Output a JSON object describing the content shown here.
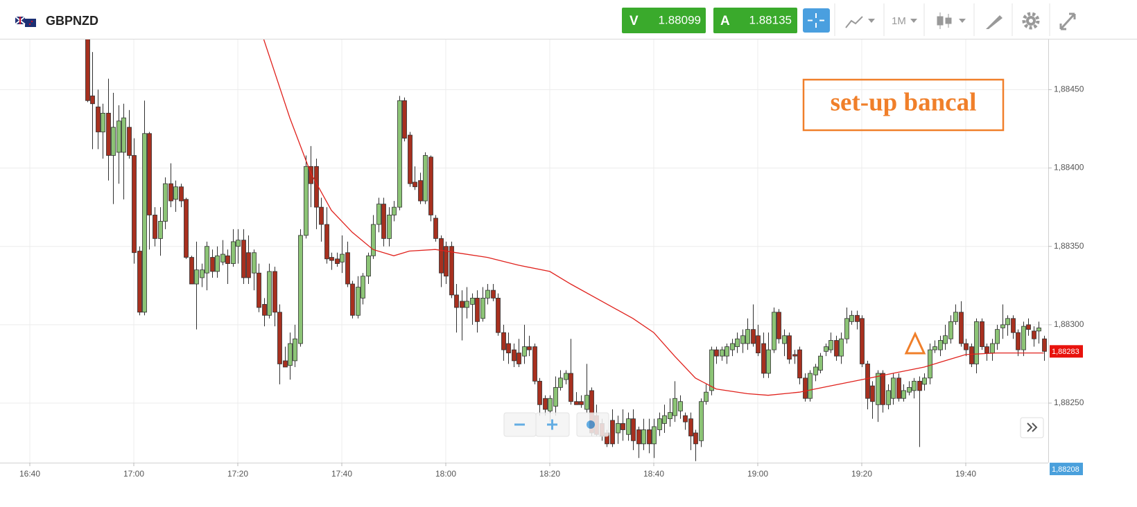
{
  "toolbar": {
    "symbol": "GBPNZD",
    "sell_label": "V",
    "sell_price": 1.88099,
    "buy_label": "A",
    "buy_price": 1.88135,
    "timeframe": "1M"
  },
  "chart_data": {
    "type": "candlestick",
    "annotation": "set-up bancal",
    "up_color": "#8cc476",
    "down_color": "#a7301f",
    "outline_color": "#2f2f2f",
    "x": [
      "16:51",
      "16:52",
      "16:53",
      "16:54",
      "16:55",
      "16:56",
      "16:57",
      "16:58",
      "16:59",
      "17:00",
      "17:01",
      "17:02",
      "17:03",
      "17:04",
      "17:05",
      "17:06",
      "17:07",
      "17:08",
      "17:09",
      "17:10",
      "17:11",
      "17:12",
      "17:13",
      "17:14",
      "17:15",
      "17:16",
      "17:17",
      "17:18",
      "17:19",
      "17:20",
      "17:21",
      "17:22",
      "17:23",
      "17:24",
      "17:25",
      "17:26",
      "17:27",
      "17:28",
      "17:29",
      "17:30",
      "17:31",
      "17:32",
      "17:33",
      "17:34",
      "17:35",
      "17:36",
      "17:37",
      "17:38",
      "17:39",
      "17:40",
      "17:41",
      "17:42",
      "17:43",
      "17:44",
      "17:45",
      "17:46",
      "17:47",
      "17:48",
      "17:49",
      "17:50",
      "17:51",
      "17:52",
      "17:53",
      "17:54",
      "17:55",
      "17:56",
      "17:57",
      "17:58",
      "17:59",
      "18:00",
      "18:01",
      "18:02",
      "18:03",
      "18:04",
      "18:05",
      "18:06",
      "18:07",
      "18:08",
      "18:09",
      "18:10",
      "18:11",
      "18:12",
      "18:13",
      "18:14",
      "18:15",
      "18:16",
      "18:17",
      "18:18",
      "18:19",
      "18:20",
      "18:21",
      "18:22",
      "18:23",
      "18:24",
      "18:25",
      "18:26",
      "18:27",
      "18:28",
      "18:29",
      "18:30",
      "18:31",
      "18:32",
      "18:33",
      "18:34",
      "18:35",
      "18:36",
      "18:37",
      "18:38",
      "18:39",
      "18:40",
      "18:41",
      "18:42",
      "18:43",
      "18:44",
      "18:45",
      "18:46",
      "18:47",
      "18:48",
      "18:49",
      "18:50",
      "18:51",
      "18:52",
      "18:53",
      "18:54",
      "18:55",
      "18:56",
      "18:57",
      "18:58",
      "18:59",
      "19:00",
      "19:01",
      "19:02",
      "19:03",
      "19:04",
      "19:05",
      "19:06",
      "19:07",
      "19:08",
      "19:09",
      "19:10",
      "19:11",
      "19:12",
      "19:13",
      "19:14",
      "19:15",
      "19:16",
      "19:17",
      "19:18",
      "19:19",
      "19:20",
      "19:21",
      "19:22",
      "19:23",
      "19:24",
      "19:25",
      "19:26",
      "19:27",
      "19:28",
      "19:29",
      "19:30",
      "19:31",
      "19:32",
      "19:33",
      "19:34",
      "19:35",
      "19:36",
      "19:37",
      "19:38",
      "19:39",
      "19:40",
      "19:41",
      "19:42",
      "19:43",
      "19:44",
      "19:45",
      "19:46",
      "19:47",
      "19:48",
      "19:49",
      "19:50",
      "19:51",
      "19:52",
      "19:53",
      "19:54",
      "19:55"
    ],
    "open": [
      1.88485,
      1.88446,
      1.88439,
      1.88423,
      1.88435,
      1.88408,
      1.8841,
      1.8841,
      1.88426,
      1.88408,
      1.88347,
      1.88308,
      1.88422,
      1.8837,
      1.88355,
      1.88366,
      1.8839,
      1.8838,
      1.88388,
      1.8838,
      1.88343,
      1.88326,
      1.8833,
      1.88333,
      1.88343,
      1.88334,
      1.8834,
      1.88344,
      1.88339,
      1.8835,
      1.88354,
      1.88346,
      1.88333,
      1.88333,
      1.88313,
      1.88306,
      1.88334,
      1.88308,
      1.88277,
      1.88274,
      1.88277,
      1.88288,
      1.88357,
      1.88401,
      1.88401,
      1.88375,
      1.88364,
      1.88343,
      1.88342,
      1.8834,
      1.88346,
      1.88326,
      1.88306,
      1.88317,
      1.88331,
      1.88344,
      1.88364,
      1.88377,
      1.88355,
      1.8837,
      1.88375,
      1.88443,
      1.88421,
      1.88391,
      1.88392,
      1.88379,
      1.88407,
      1.88368,
      1.88355,
      1.8835,
      1.8835,
      1.88319,
      1.88315,
      1.88311,
      1.88313,
      1.88317,
      1.88304,
      1.88317,
      1.88322,
      1.88317,
      1.88295,
      1.88288,
      1.88284,
      1.88282,
      1.8828,
      1.88286,
      1.88286,
      1.88264,
      1.88253,
      1.88245,
      1.88248,
      1.8826,
      1.88265,
      1.88269,
      1.88251,
      1.88251,
      1.88246,
      1.88258,
      1.88242,
      1.88237,
      1.88231,
      1.88239,
      1.88231,
      1.88237,
      1.8823,
      1.8824,
      1.88233,
      1.88224,
      1.88233,
      1.88224,
      1.88233,
      1.88237,
      1.8824,
      1.88242,
      1.88245,
      1.88242,
      1.8824,
      1.88231,
      1.88226,
      1.88251,
      1.88258,
      1.88284,
      1.8828,
      1.8828,
      1.88284,
      1.88286,
      1.88288,
      1.88288,
      1.88297,
      1.88293,
      1.88288,
      1.88269,
      1.88284,
      1.88308,
      1.88288,
      1.88293,
      1.88281,
      1.88284,
      1.88266,
      1.88253,
      1.88268,
      1.88271,
      1.88283,
      1.88284,
      1.8829,
      1.8828,
      1.88291,
      1.88302,
      1.88306,
      1.88304,
      1.88275,
      1.88261,
      1.88249,
      1.88269,
      1.88249,
      1.88253,
      1.88266,
      1.88253,
      1.88257,
      1.88258,
      1.88264,
      1.88262,
      1.88266,
      1.88284,
      1.88284,
      1.88288,
      1.88291,
      1.88302,
      1.88308,
      1.88288,
      1.88286,
      1.88275,
      1.88302,
      1.88286,
      1.88282,
      1.88288,
      1.88298,
      1.883,
      1.88304,
      1.88295,
      1.88284,
      1.883,
      1.88296,
      1.88296,
      1.88291
    ],
    "high": [
      1.8849,
      1.88474,
      1.8845,
      1.88441,
      1.88457,
      1.88448,
      1.8844,
      1.88441,
      1.88437,
      1.88419,
      1.8835,
      1.88443,
      1.88423,
      1.88375,
      1.88375,
      1.88394,
      1.88403,
      1.88392,
      1.8839,
      1.88381,
      1.88344,
      1.88353,
      1.88339,
      1.88353,
      1.88348,
      1.8835,
      1.88354,
      1.88348,
      1.88361,
      1.88361,
      1.88361,
      1.88357,
      1.88348,
      1.88339,
      1.88317,
      1.88339,
      1.88337,
      1.88313,
      1.88286,
      1.88295,
      1.883,
      1.88361,
      1.88408,
      1.88414,
      1.88406,
      1.88381,
      1.88375,
      1.88346,
      1.88346,
      1.88357,
      1.88353,
      1.88328,
      1.88331,
      1.88333,
      1.88346,
      1.8837,
      1.88381,
      1.88381,
      1.88375,
      1.88379,
      1.88446,
      1.88445,
      1.88423,
      1.88401,
      1.88397,
      1.8841,
      1.88408,
      1.8837,
      1.88357,
      1.88353,
      1.88353,
      1.88326,
      1.88322,
      1.88324,
      1.8832,
      1.88322,
      1.88324,
      1.88326,
      1.88326,
      1.8832,
      1.883,
      1.88295,
      1.88288,
      1.88291,
      1.883,
      1.88293,
      1.88288,
      1.88266,
      1.88255,
      1.88255,
      1.88267,
      1.88271,
      1.88271,
      1.88291,
      1.88257,
      1.88255,
      1.88275,
      1.8826,
      1.88249,
      1.8824,
      1.88233,
      1.88246,
      1.88242,
      1.88246,
      1.88244,
      1.88246,
      1.88235,
      1.8824,
      1.8824,
      1.8824,
      1.88244,
      1.88249,
      1.88253,
      1.88264,
      1.88255,
      1.88244,
      1.88244,
      1.88233,
      1.88253,
      1.88262,
      1.88286,
      1.88286,
      1.88286,
      1.88288,
      1.88291,
      1.88295,
      1.88297,
      1.88304,
      1.88313,
      1.883,
      1.88295,
      1.88295,
      1.88311,
      1.8831,
      1.88297,
      1.88295,
      1.88284,
      1.88286,
      1.88269,
      1.88271,
      1.88275,
      1.88282,
      1.88288,
      1.88295,
      1.88293,
      1.88295,
      1.88311,
      1.88309,
      1.88309,
      1.88306,
      1.88277,
      1.88264,
      1.88271,
      1.88271,
      1.88262,
      1.88269,
      1.88269,
      1.88262,
      1.88264,
      1.88266,
      1.88267,
      1.88269,
      1.88288,
      1.8829,
      1.88293,
      1.883,
      1.88306,
      1.88313,
      1.88315,
      1.88291,
      1.88288,
      1.88304,
      1.88304,
      1.88288,
      1.88291,
      1.883,
      1.88313,
      1.88306,
      1.88306,
      1.88297,
      1.88302,
      1.88304,
      1.88299,
      1.88302,
      1.88293
    ],
    "low": [
      1.88442,
      1.88412,
      1.88412,
      1.88406,
      1.88392,
      1.88377,
      1.8839,
      1.8838,
      1.88406,
      1.88339,
      1.88306,
      1.88306,
      1.88348,
      1.8835,
      1.88344,
      1.88361,
      1.88375,
      1.88372,
      1.88375,
      1.88342,
      1.88326,
      1.88297,
      1.88324,
      1.88322,
      1.8833,
      1.8833,
      1.88338,
      1.88326,
      1.88337,
      1.88339,
      1.88326,
      1.88326,
      1.88322,
      1.88308,
      1.88299,
      1.88304,
      1.88299,
      1.88262,
      1.88273,
      1.88265,
      1.88273,
      1.88286,
      1.88355,
      1.88375,
      1.88361,
      1.88353,
      1.88339,
      1.88335,
      1.88337,
      1.88333,
      1.88324,
      1.88304,
      1.88304,
      1.88313,
      1.88326,
      1.88342,
      1.88359,
      1.8835,
      1.8835,
      1.88366,
      1.88373,
      1.88417,
      1.88388,
      1.88386,
      1.88377,
      1.88377,
      1.88366,
      1.88353,
      1.88324,
      1.88326,
      1.88317,
      1.88295,
      1.8829,
      1.88304,
      1.883,
      1.88295,
      1.88302,
      1.88313,
      1.88315,
      1.88293,
      1.88277,
      1.88275,
      1.88273,
      1.88273,
      1.88275,
      1.8828,
      1.88262,
      1.88242,
      1.88242,
      1.88238,
      1.88242,
      1.88258,
      1.88262,
      1.88249,
      1.88249,
      1.88247,
      1.88244,
      1.88229,
      1.88229,
      1.88226,
      1.88222,
      1.88222,
      1.88224,
      1.88226,
      1.88226,
      1.8822,
      1.88215,
      1.8822,
      1.88218,
      1.88215,
      1.88229,
      1.88231,
      1.88235,
      1.88238,
      1.8824,
      1.88233,
      1.8822,
      1.88213,
      1.88222,
      1.88249,
      1.88255,
      1.88275,
      1.88277,
      1.88275,
      1.8828,
      1.88282,
      1.88282,
      1.88284,
      1.88286,
      1.8828,
      1.88266,
      1.88266,
      1.88282,
      1.88288,
      1.8828,
      1.88275,
      1.88275,
      1.88262,
      1.88251,
      1.88251,
      1.88264,
      1.88269,
      1.8828,
      1.88282,
      1.88277,
      1.88275,
      1.88288,
      1.883,
      1.88297,
      1.88273,
      1.88246,
      1.8824,
      1.88238,
      1.88244,
      1.88246,
      1.88249,
      1.88251,
      1.88251,
      1.88255,
      1.88253,
      1.88222,
      1.88258,
      1.88262,
      1.88282,
      1.8828,
      1.88284,
      1.88288,
      1.883,
      1.88286,
      1.8828,
      1.88273,
      1.88269,
      1.88284,
      1.88277,
      1.88277,
      1.88284,
      1.88291,
      1.88293,
      1.88291,
      1.8828,
      1.8828,
      1.88293,
      1.88286,
      1.88288,
      1.88277
    ],
    "close": [
      1.88443,
      1.88441,
      1.88423,
      1.88435,
      1.88408,
      1.88426,
      1.8843,
      1.88432,
      1.88408,
      1.88346,
      1.88308,
      1.88422,
      1.8837,
      1.88355,
      1.88366,
      1.8839,
      1.88379,
      1.88388,
      1.88379,
      1.88343,
      1.88326,
      1.88335,
      1.88335,
      1.8835,
      1.88334,
      1.88344,
      1.88345,
      1.88339,
      1.88353,
      1.88354,
      1.8833,
      1.8833,
      1.88346,
      1.88311,
      1.88306,
      1.88334,
      1.88308,
      1.88275,
      1.88273,
      1.88288,
      1.88291,
      1.88357,
      1.88401,
      1.8839,
      1.88375,
      1.88364,
      1.88342,
      1.88341,
      1.88339,
      1.88345,
      1.88326,
      1.88306,
      1.88324,
      1.88331,
      1.88344,
      1.88364,
      1.88377,
      1.88355,
      1.8837,
      1.88375,
      1.88443,
      1.88419,
      1.8839,
      1.88388,
      1.88379,
      1.88408,
      1.8837,
      1.88355,
      1.88333,
      1.88331,
      1.88319,
      1.88311,
      1.88311,
      1.88315,
      1.88317,
      1.88302,
      1.88317,
      1.88322,
      1.88317,
      1.88295,
      1.88284,
      1.88282,
      1.88277,
      1.88275,
      1.88286,
      1.88284,
      1.88264,
      1.88249,
      1.88246,
      1.88253,
      1.8826,
      1.88266,
      1.88269,
      1.88251,
      1.88249,
      1.88249,
      1.88255,
      1.88231,
      1.8823,
      1.88229,
      1.88224,
      1.88224,
      1.88237,
      1.88233,
      1.8824,
      1.88226,
      1.88224,
      1.88233,
      1.88224,
      1.88235,
      1.8824,
      1.88242,
      1.88244,
      1.88253,
      1.88251,
      1.88238,
      1.88229,
      1.88224,
      1.88251,
      1.88257,
      1.88284,
      1.8828,
      1.88284,
      1.88286,
      1.88288,
      1.88291,
      1.88293,
      1.88297,
      1.88288,
      1.88282,
      1.88269,
      1.88284,
      1.88308,
      1.88291,
      1.88293,
      1.88278,
      1.8828,
      1.88266,
      1.88253,
      1.88269,
      1.88273,
      1.8828,
      1.88286,
      1.8829,
      1.8828,
      1.88291,
      1.88304,
      1.88306,
      1.88302,
      1.88275,
      1.88253,
      1.88251,
      1.88269,
      1.88249,
      1.88258,
      1.88266,
      1.88253,
      1.88258,
      1.8826,
      1.88264,
      1.88258,
      1.88266,
      1.88284,
      1.88286,
      1.8829,
      1.88293,
      1.88302,
      1.88308,
      1.88288,
      1.88284,
      1.88275,
      1.88302,
      1.88286,
      1.88282,
      1.88288,
      1.88297,
      1.883,
      1.88304,
      1.88295,
      1.88284,
      1.88299,
      1.88297,
      1.88291,
      1.88298,
      1.88283
    ],
    "moving_average": {
      "color": "#e0211c",
      "x": [
        "17:25",
        "17:30",
        "17:34",
        "17:38",
        "17:42",
        "17:46",
        "17:50",
        "17:53",
        "17:58",
        "18:02",
        "18:08",
        "18:14",
        "18:20",
        "18:24",
        "18:30",
        "18:36",
        "18:40",
        "18:44",
        "18:48",
        "18:52",
        "18:58",
        "19:02",
        "19:08",
        "19:14",
        "19:20",
        "19:26",
        "19:32",
        "19:36",
        "19:40",
        "19:46",
        "19:55"
      ],
      "values": [
        1.88482,
        1.88432,
        1.88397,
        1.88373,
        1.88359,
        1.88348,
        1.88344,
        1.88347,
        1.88348,
        1.88346,
        1.88343,
        1.88338,
        1.88334,
        1.88326,
        1.88315,
        1.88304,
        1.88295,
        1.8828,
        1.88266,
        1.88259,
        1.88256,
        1.88255,
        1.88257,
        1.88261,
        1.88265,
        1.88269,
        1.88273,
        1.88277,
        1.88281,
        1.88282,
        1.88282
      ]
    },
    "xlim": [
      "16:34",
      "19:56"
    ],
    "xticks": [
      "16:40",
      "17:00",
      "17:20",
      "17:40",
      "18:00",
      "18:20",
      "18:40",
      "19:00",
      "19:20",
      "19:40"
    ],
    "ylim": [
      1.88212,
      1.88482
    ],
    "yticks": [
      {
        "value": 1.8825,
        "label": "1,88250"
      },
      {
        "value": 1.883,
        "label": "1,88300"
      },
      {
        "value": 1.8835,
        "label": "1,88350"
      },
      {
        "value": 1.884,
        "label": "1,88400"
      },
      {
        "value": 1.8845,
        "label": "1,88450"
      }
    ],
    "last_price": {
      "value": 1.88283,
      "label": "1,88283"
    },
    "price_scale_bottom": {
      "value": 1.88208,
      "label": "1,88208"
    },
    "grid": true
  }
}
